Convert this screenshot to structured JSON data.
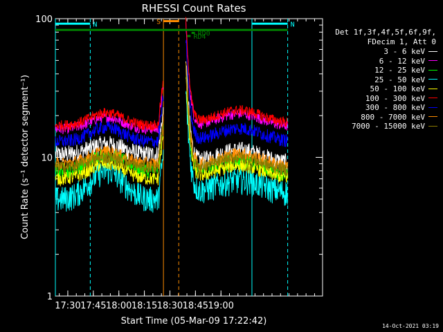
{
  "chart_data": {
    "type": "line",
    "title": "RHESSI Count Rates",
    "xlabel": "Start Time (05-Mar-09 17:22:42)",
    "ylabel": "Count Rate (s⁻¹ detector segment⁻¹)",
    "yscale": "log",
    "ylim": [
      1,
      100
    ],
    "xlim_minutes": [
      0,
      157
    ],
    "x_tick_labels": [
      "17:30",
      "17:45",
      "18:00",
      "18:15",
      "18:30",
      "18:45",
      "19:00"
    ],
    "x_tick_minutes": [
      7.3,
      22.3,
      37.3,
      52.3,
      67.3,
      82.3,
      97.3
    ],
    "y_tick_labels": [
      "1",
      "10",
      "100"
    ],
    "y_tick_values": [
      1,
      10,
      100
    ],
    "legend_header": [
      "Det 1f,3f,4f,5f,6f,9f,",
      "FDecim 1, Att 0"
    ],
    "legend_position": "top-right",
    "series": [
      {
        "name": "3 - 6 keV",
        "color": "#ffffff",
        "base": [
          10.5,
          12.5,
          9.0
        ],
        "noise": 0.07
      },
      {
        "name": "6 - 12 keV",
        "color": "#ff00ff",
        "base": [
          16.0,
          19.5,
          16.5
        ],
        "noise": 0.04
      },
      {
        "name": "12 - 25 keV",
        "color": "#00ff00",
        "base": [
          8.0,
          10.5,
          7.5
        ],
        "noise": 0.06
      },
      {
        "name": "25 - 50 keV",
        "color": "#00ffff",
        "base": [
          5.0,
          8.0,
          5.5
        ],
        "noise": 0.1
      },
      {
        "name": "50 - 100 keV",
        "color": "#ffff00",
        "base": [
          7.0,
          9.0,
          7.0
        ],
        "noise": 0.05
      },
      {
        "name": "100 - 300 keV",
        "color": "#ff0000",
        "base": [
          17.0,
          21.0,
          17.5
        ],
        "noise": 0.04
      },
      {
        "name": "300 - 800 keV",
        "color": "#0000ff",
        "base": [
          13.0,
          16.5,
          13.0
        ],
        "noise": 0.05
      },
      {
        "name": "800 - 7000 keV",
        "color": "#ff8c00",
        "base": [
          9.0,
          11.0,
          8.5
        ],
        "noise": 0.05
      },
      {
        "name": "7000 - 15000 keV",
        "color": "#8b7a00",
        "base": [
          8.5,
          10.0,
          8.0
        ],
        "noise": 0.05
      }
    ],
    "gap_minutes": [
      63.5,
      76.5
    ],
    "saa_markers_minutes": [
      63.5,
      72.5
    ],
    "night_markers_minutes": [
      0,
      20.5,
      115.5,
      136.5
    ],
    "flags": [
      {
        "label": "N",
        "color": "#00ffff",
        "start": 0,
        "end": 20.5,
        "level": 92
      },
      {
        "label": "N",
        "color": "#00ffff",
        "start": 115.5,
        "end": 136.5,
        "level": 92
      },
      {
        "label": "S",
        "color": "#ff8c00",
        "start": 63.5,
        "end": 72.5,
        "level": 96
      },
      {
        "label": "RD4",
        "color": "#008000",
        "start": 77.5,
        "end": 79.5,
        "level": 75
      },
      {
        "label": "RD0",
        "color": "#008000",
        "start": 80,
        "end": 82,
        "level": 79
      }
    ],
    "attenuator_bar": {
      "color": "#008000",
      "start": 0,
      "end": 136.5,
      "level": 83
    }
  },
  "timestamp": "14-Oct-2021 03:19"
}
